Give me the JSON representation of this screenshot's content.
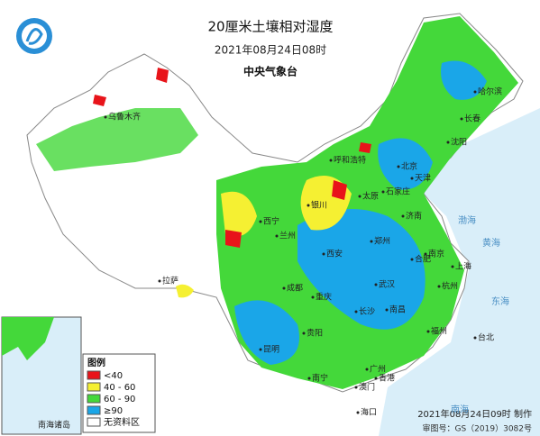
{
  "header": {
    "title": "20厘米土壤相对湿度",
    "time": "2021年08月24日08时",
    "agency": "中央气象台"
  },
  "legend": {
    "title": "图例",
    "items": [
      {
        "label": "<40",
        "color": "#e8141a"
      },
      {
        "label": "40 - 60",
        "color": "#f5f032"
      },
      {
        "label": "60 - 90",
        "color": "#44d83a"
      },
      {
        "label": "≥90",
        "color": "#1aa6e8"
      },
      {
        "label": "无资料区",
        "color": "#ffffff"
      }
    ]
  },
  "inset": {
    "label": "南海诸岛"
  },
  "footer": {
    "made": "2021年08月24日09时 制作",
    "approval": "审图号：GS（2019）3082号"
  },
  "cities": [
    "哈尔滨",
    "长春",
    "沈阳",
    "北京",
    "天津",
    "石家庄",
    "太原",
    "呼和浩特",
    "济南",
    "郑州",
    "西安",
    "兰州",
    "西宁",
    "银川",
    "合肥",
    "南京",
    "上海",
    "杭州",
    "武汉",
    "长沙",
    "南昌",
    "福州",
    "台北",
    "成都",
    "重庆",
    "贵阳",
    "昆明",
    "南宁",
    "广州",
    "香港",
    "澳门",
    "海口",
    "拉萨",
    "乌鲁木齐"
  ],
  "seas": [
    "渤海",
    "黄海",
    "东海",
    "南海"
  ]
}
